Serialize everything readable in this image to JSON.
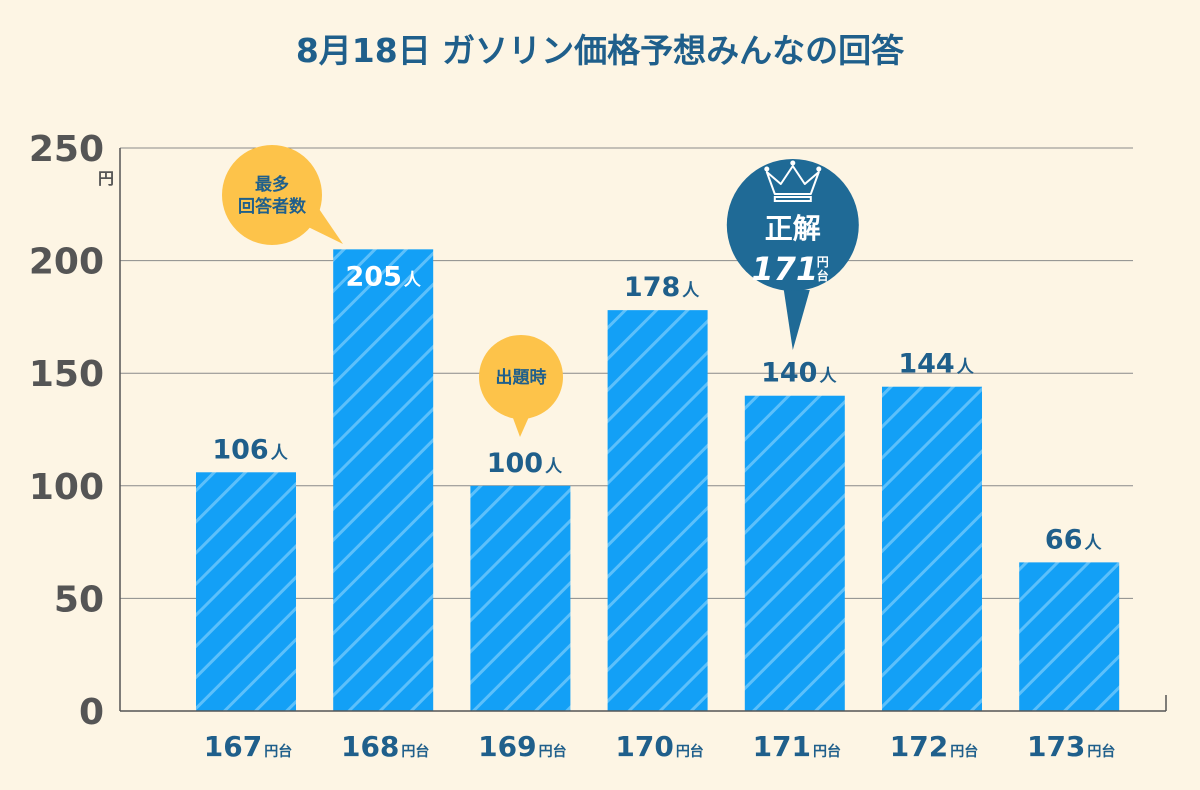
{
  "title": "8月18日 ガソリン価格予想みんなの回答",
  "colors": {
    "background": "#fdf5e4",
    "bar": "#13a0f6",
    "title": "#1f5f8b",
    "tick": "#555555",
    "bubble": "#fdc34a",
    "answer_bubble": "#1f6a96"
  },
  "chart_data": {
    "type": "bar",
    "title": "8月18日 ガソリン価格予想みんなの回答",
    "y_unit": "円",
    "category_unit": "円台",
    "value_unit": "人",
    "categories": [
      "167",
      "168",
      "169",
      "170",
      "171",
      "172",
      "173"
    ],
    "values": [
      106,
      205,
      100,
      178,
      140,
      144,
      66
    ],
    "ylim": [
      0,
      250
    ],
    "yticks": [
      0,
      50,
      100,
      150,
      200,
      250
    ],
    "grid": true,
    "annotations": [
      {
        "category": "168",
        "lines": [
          "最多",
          "回答者数"
        ]
      },
      {
        "category": "169",
        "lines": [
          "出題時"
        ]
      }
    ],
    "answer": {
      "category": "171",
      "label": "正解",
      "value": "171",
      "unit_top": "円",
      "unit_bottom": "台",
      "icon": "crown-icon"
    }
  }
}
